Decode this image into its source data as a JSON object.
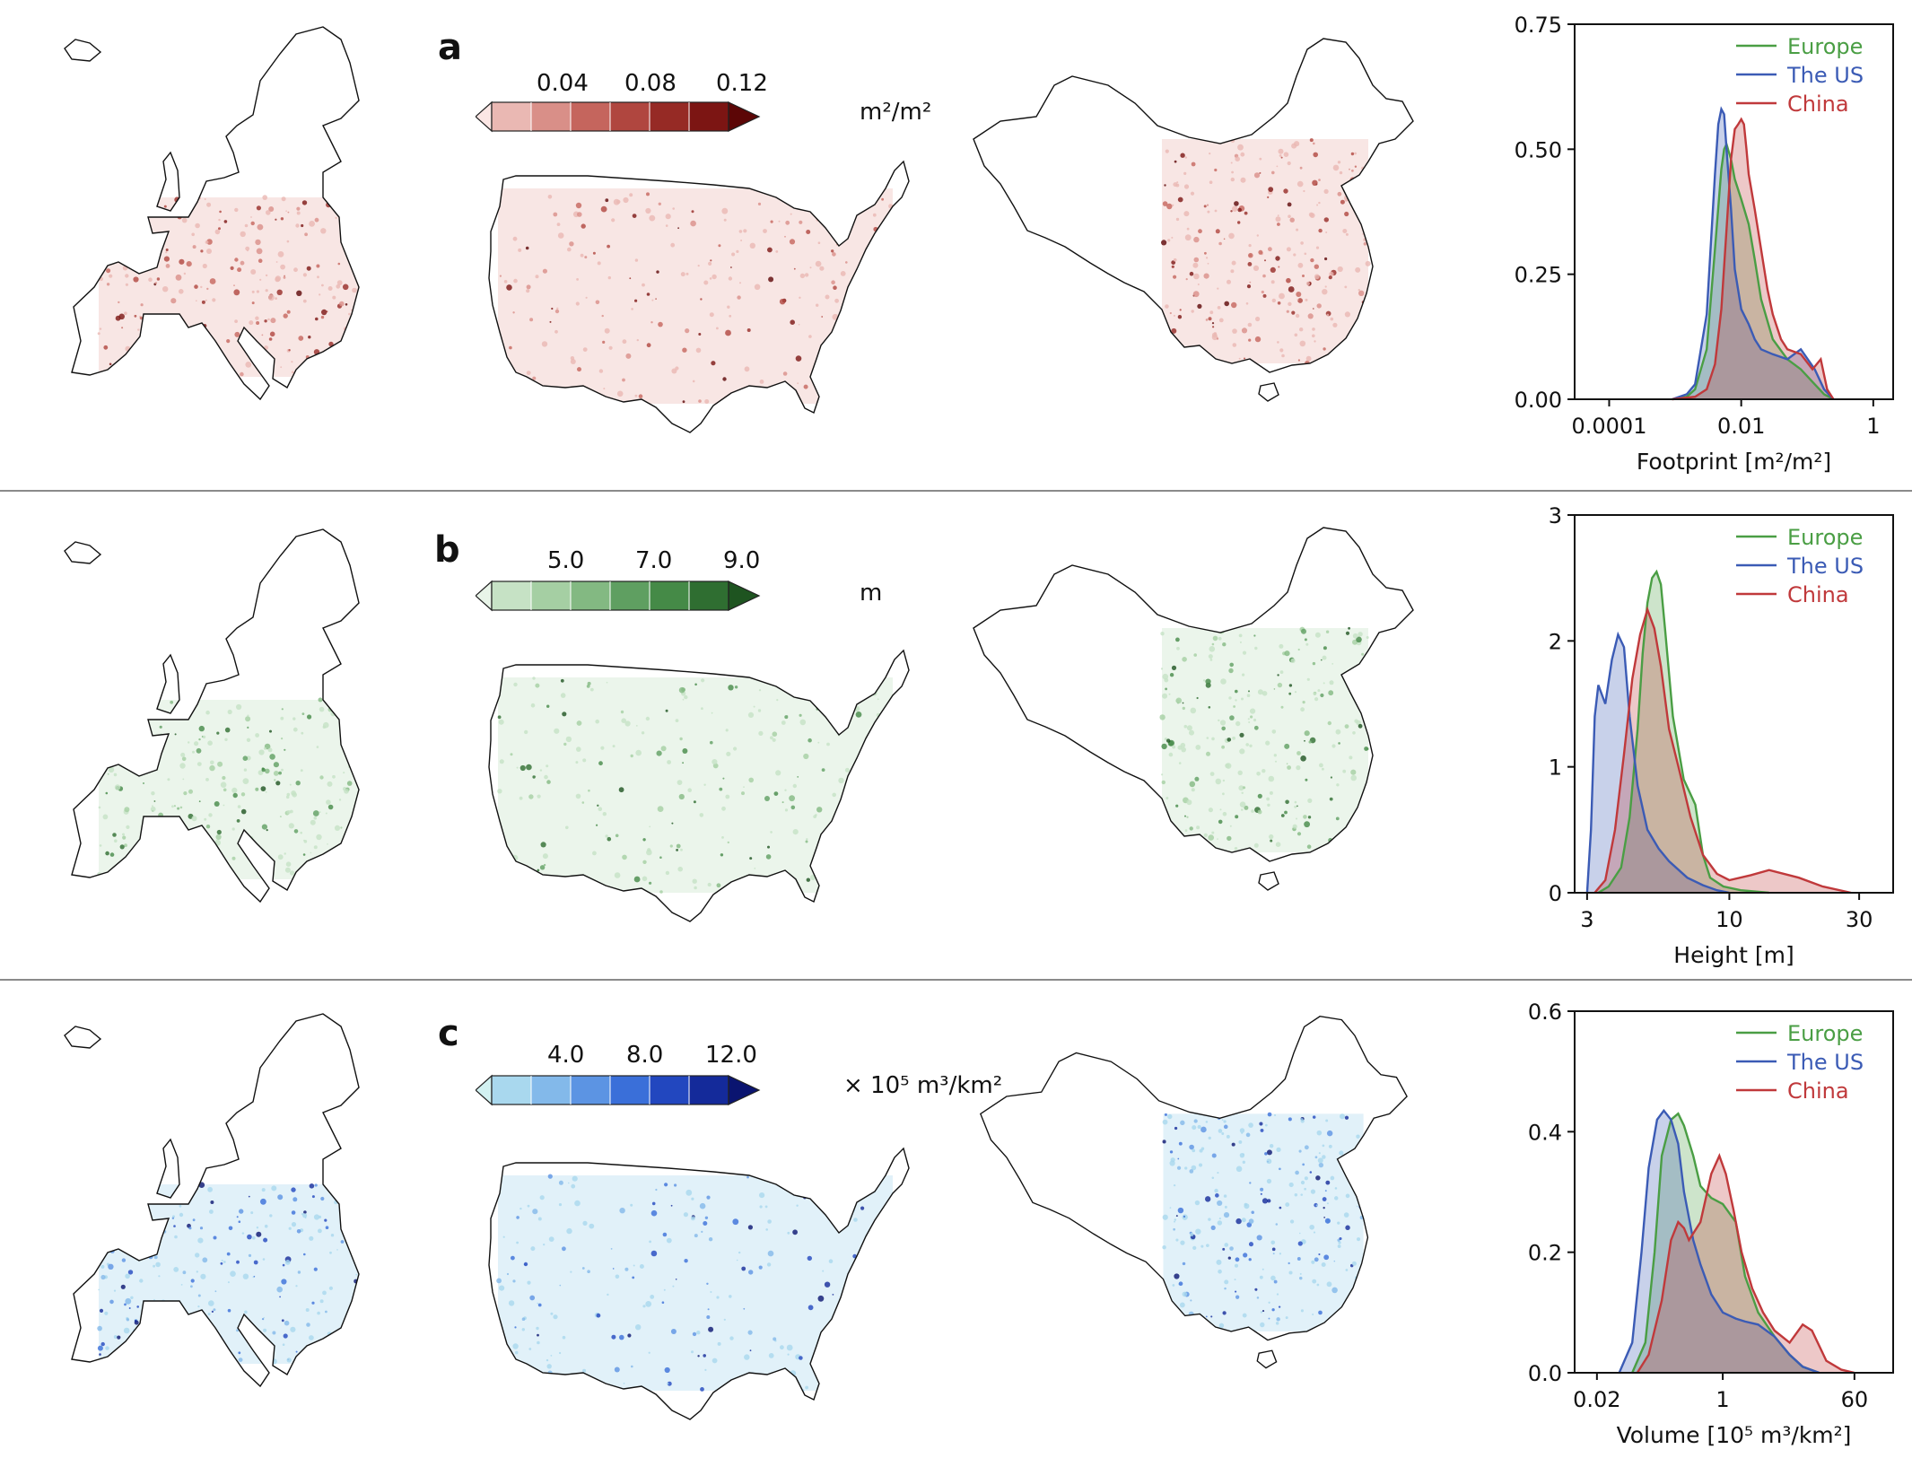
{
  "panels": [
    {
      "letter": "a",
      "colors": [
        "#fbe6e4",
        "#eab8b3",
        "#d98f88",
        "#c5655d",
        "#b0463f",
        "#962a25",
        "#7c1513",
        "#5c0606"
      ],
      "colorbar": {
        "ticks": [
          "0.04",
          "0.08",
          "0.12"
        ],
        "unit": "m²/m²"
      }
    },
    {
      "letter": "b",
      "colors": [
        "#e8f4e8",
        "#c6e2c5",
        "#a5cfa3",
        "#83b982",
        "#5f9f61",
        "#458a47",
        "#2f6e31",
        "#1e5420"
      ],
      "colorbar": {
        "ticks": [
          "5.0",
          "7.0",
          "9.0"
        ],
        "unit": "m"
      }
    },
    {
      "letter": "c",
      "colors": [
        "#d2f1f1",
        "#a9d8ee",
        "#83b9ea",
        "#5c94e3",
        "#3a6fd9",
        "#2247bf",
        "#142a9a",
        "#0a1470"
      ],
      "colorbar": {
        "ticks": [
          "4.0",
          "8.0",
          "12.0"
        ],
        "unit": "× 10⁵ m³/km²"
      }
    }
  ],
  "series_colors": {
    "Europe": "#4a9e44",
    "The US": "#3b5bb5",
    "China": "#c0393b"
  },
  "chart_data": [
    {
      "type": "area",
      "xlabel": "Footprint [m²/m²]",
      "xscale": "log",
      "xlim": [
        3e-05,
        2
      ],
      "ylim": [
        0,
        0.75
      ],
      "yticks": [
        "0.00",
        "0.25",
        "0.50",
        "0.75"
      ],
      "ytick_values": [
        0,
        0.25,
        0.5,
        0.75
      ],
      "xticks": [
        "0.0001",
        "0.01",
        "1"
      ],
      "xtick_values": [
        0.0001,
        0.01,
        1
      ],
      "legend": [
        "Europe",
        "The US",
        "China"
      ],
      "legend_position": "top-right",
      "series": [
        {
          "name": "Europe",
          "x": [
            0.0009,
            0.0015,
            0.002,
            0.003,
            0.004,
            0.005,
            0.0055,
            0.006,
            0.007,
            0.008,
            0.01,
            0.013,
            0.016,
            0.02,
            0.03,
            0.05,
            0.08,
            0.13,
            0.18,
            0.25
          ],
          "y": [
            0,
            0.005,
            0.02,
            0.1,
            0.3,
            0.46,
            0.5,
            0.51,
            0.48,
            0.44,
            0.4,
            0.35,
            0.28,
            0.2,
            0.12,
            0.08,
            0.06,
            0.03,
            0.01,
            0
          ]
        },
        {
          "name": "The US",
          "x": [
            0.0009,
            0.0015,
            0.002,
            0.003,
            0.004,
            0.0045,
            0.005,
            0.0055,
            0.006,
            0.007,
            0.008,
            0.01,
            0.013,
            0.016,
            0.02,
            0.03,
            0.05,
            0.08,
            0.13,
            0.18,
            0.25
          ],
          "y": [
            0,
            0.01,
            0.03,
            0.17,
            0.45,
            0.55,
            0.58,
            0.57,
            0.5,
            0.38,
            0.26,
            0.18,
            0.15,
            0.12,
            0.1,
            0.09,
            0.08,
            0.1,
            0.06,
            0.02,
            0
          ]
        },
        {
          "name": "China",
          "x": [
            0.0009,
            0.002,
            0.003,
            0.004,
            0.005,
            0.006,
            0.007,
            0.008,
            0.009,
            0.01,
            0.011,
            0.012,
            0.013,
            0.016,
            0.02,
            0.025,
            0.03,
            0.04,
            0.05,
            0.08,
            0.12,
            0.16,
            0.2,
            0.25
          ],
          "y": [
            0,
            0.005,
            0.02,
            0.07,
            0.18,
            0.34,
            0.48,
            0.54,
            0.55,
            0.56,
            0.55,
            0.5,
            0.45,
            0.38,
            0.3,
            0.22,
            0.17,
            0.12,
            0.1,
            0.09,
            0.06,
            0.08,
            0.02,
            0
          ]
        }
      ]
    },
    {
      "type": "area",
      "xlabel": "Height [m]",
      "xscale": "log",
      "xlim": [
        2.7,
        40
      ],
      "ylim": [
        0,
        3
      ],
      "yticks": [
        "0",
        "1",
        "2",
        "3"
      ],
      "ytick_values": [
        0,
        1,
        2,
        3
      ],
      "xticks": [
        "3",
        "10",
        "30"
      ],
      "xtick_values": [
        3,
        10,
        30
      ],
      "legend": [
        "Europe",
        "The US",
        "China"
      ],
      "legend_position": "top-right",
      "series": [
        {
          "name": "Europe",
          "x": [
            3.3,
            3.6,
            4,
            4.3,
            4.6,
            4.8,
            5,
            5.2,
            5.4,
            5.6,
            5.8,
            6.2,
            6.8,
            7.5,
            8,
            8.5,
            9.5,
            11,
            14
          ],
          "y": [
            0,
            0.05,
            0.2,
            0.6,
            1.3,
            1.9,
            2.3,
            2.5,
            2.55,
            2.45,
            2.1,
            1.4,
            0.9,
            0.7,
            0.3,
            0.12,
            0.05,
            0.02,
            0
          ]
        },
        {
          "name": "The US",
          "x": [
            3,
            3.1,
            3.2,
            3.3,
            3.5,
            3.7,
            3.9,
            4.1,
            4.3,
            4.6,
            5,
            5.5,
            6,
            7,
            8,
            9,
            10
          ],
          "y": [
            0,
            0.5,
            1.4,
            1.65,
            1.5,
            1.85,
            2.05,
            1.95,
            1.4,
            0.85,
            0.5,
            0.35,
            0.25,
            0.12,
            0.06,
            0.02,
            0
          ]
        },
        {
          "name": "China",
          "x": [
            3.2,
            3.5,
            3.8,
            4.1,
            4.4,
            4.7,
            5,
            5.3,
            5.6,
            6,
            6.5,
            7.2,
            8,
            9,
            10,
            12,
            14,
            18,
            22,
            28
          ],
          "y": [
            0,
            0.1,
            0.5,
            1.1,
            1.7,
            2.05,
            2.25,
            2.1,
            1.8,
            1.3,
            1,
            0.6,
            0.3,
            0.15,
            0.1,
            0.14,
            0.18,
            0.12,
            0.05,
            0
          ]
        }
      ]
    },
    {
      "type": "area",
      "xlabel": "Volume [10⁵ m³/km²]",
      "xscale": "log",
      "xlim": [
        0.01,
        200
      ],
      "ylim": [
        0,
        0.6
      ],
      "yticks": [
        "0.0",
        "0.2",
        "0.4",
        "0.6"
      ],
      "ytick_values": [
        0,
        0.2,
        0.4,
        0.6
      ],
      "xticks": [
        "0.02",
        "1",
        "60"
      ],
      "xtick_values": [
        0.02,
        1,
        60
      ],
      "legend": [
        "Europe",
        "The US",
        "China"
      ],
      "legend_position": "top-right",
      "series": [
        {
          "name": "Europe",
          "x": [
            0.06,
            0.09,
            0.12,
            0.15,
            0.2,
            0.25,
            0.3,
            0.4,
            0.5,
            0.7,
            1,
            1.5,
            2,
            3,
            5,
            8,
            12,
            20
          ],
          "y": [
            0,
            0.05,
            0.2,
            0.36,
            0.42,
            0.43,
            0.41,
            0.36,
            0.31,
            0.29,
            0.28,
            0.25,
            0.16,
            0.1,
            0.06,
            0.03,
            0.01,
            0
          ]
        },
        {
          "name": "The US",
          "x": [
            0.04,
            0.06,
            0.08,
            0.1,
            0.13,
            0.16,
            0.2,
            0.25,
            0.3,
            0.4,
            0.5,
            0.7,
            1,
            1.5,
            2,
            3,
            5,
            8,
            12,
            20
          ],
          "y": [
            0,
            0.05,
            0.2,
            0.34,
            0.42,
            0.435,
            0.42,
            0.38,
            0.3,
            0.22,
            0.18,
            0.13,
            0.1,
            0.09,
            0.085,
            0.08,
            0.06,
            0.03,
            0.01,
            0
          ]
        },
        {
          "name": "China",
          "x": [
            0.07,
            0.1,
            0.15,
            0.2,
            0.25,
            0.3,
            0.35,
            0.5,
            0.7,
            0.9,
            1.1,
            1.4,
            1.8,
            2.5,
            3.5,
            5,
            8,
            12,
            16,
            25,
            40,
            60
          ],
          "y": [
            0,
            0.03,
            0.12,
            0.22,
            0.25,
            0.24,
            0.22,
            0.25,
            0.33,
            0.36,
            0.33,
            0.27,
            0.2,
            0.14,
            0.1,
            0.07,
            0.05,
            0.08,
            0.07,
            0.02,
            0.005,
            0
          ]
        }
      ]
    }
  ]
}
